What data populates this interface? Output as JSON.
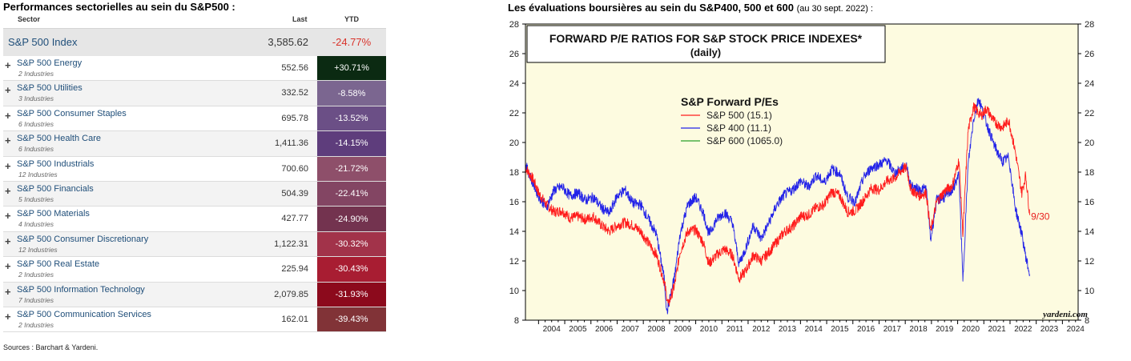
{
  "left": {
    "title": "Performances sectorielles au sein du S&P500 :",
    "headers": {
      "sector": "Sector",
      "last": "Last",
      "ytd": "YTD"
    },
    "index": {
      "name": "S&P 500 Index",
      "last": "3,585.62",
      "ytd": "-24.77%"
    },
    "rows": [
      {
        "name": "S&P 500 Energy",
        "sub": "2 Industries",
        "last": "552.56",
        "ytd": "+30.71%",
        "color": "#0b2a12"
      },
      {
        "name": "S&P 500 Utilities",
        "sub": "3 Industries",
        "last": "332.52",
        "ytd": "-8.58%",
        "color": "#7b6690"
      },
      {
        "name": "S&P 500 Consumer Staples",
        "sub": "6 Industries",
        "last": "695.78",
        "ytd": "-13.52%",
        "color": "#6b4f86"
      },
      {
        "name": "S&P 500 Health Care",
        "sub": "6 Industries",
        "last": "1,411.36",
        "ytd": "-14.15%",
        "color": "#5e3d7c"
      },
      {
        "name": "S&P 500 Industrials",
        "sub": "12 Industries",
        "last": "700.60",
        "ytd": "-21.72%",
        "color": "#8e4f6a"
      },
      {
        "name": "S&P 500 Financials",
        "sub": "5 Industries",
        "last": "504.39",
        "ytd": "-22.41%",
        "color": "#834563"
      },
      {
        "name": "S&P 500 Materials",
        "sub": "4 Industries",
        "last": "427.77",
        "ytd": "-24.90%",
        "color": "#73334f"
      },
      {
        "name": "S&P 500 Consumer Discretionary",
        "sub": "12 Industries",
        "last": "1,122.31",
        "ytd": "-30.32%",
        "color": "#a2334a"
      },
      {
        "name": "S&P 500 Real Estate",
        "sub": "2 Industries",
        "last": "225.94",
        "ytd": "-30.43%",
        "color": "#a81d32"
      },
      {
        "name": "S&P 500 Information Technology",
        "sub": "7 Industries",
        "last": "2,079.85",
        "ytd": "-31.93%",
        "color": "#8c0a1c"
      },
      {
        "name": "S&P 500 Communication Services",
        "sub": "2 Industries",
        "last": "162.01",
        "ytd": "-39.43%",
        "color": "#813337"
      }
    ],
    "sources": "Sources : Barchart & Yardeni."
  },
  "chart_title": {
    "main": "Les évaluations boursières au sein du S&P400, 500 et 600",
    "note": "(au 30 sept. 2022) :"
  },
  "chart_data": {
    "type": "line",
    "title": "FORWARD P/E RATIOS FOR S&P STOCK PRICE INDEXES*",
    "subtitle": "(daily)",
    "legend_title": "S&P Forward P/Es",
    "legend_position": "top-left",
    "ylim": [
      8,
      28
    ],
    "xlim": [
      2003.5,
      2024.6
    ],
    "y_ticks": [
      8,
      10,
      12,
      14,
      16,
      18,
      20,
      22,
      24,
      26,
      28
    ],
    "x_labels": [
      "2004",
      "2005",
      "2006",
      "2007",
      "2008",
      "2009",
      "2010",
      "2011",
      "2012",
      "2013",
      "2014",
      "2015",
      "2016",
      "2017",
      "2018",
      "2019",
      "2020",
      "2021",
      "2022",
      "2023",
      "2024"
    ],
    "background": "#fdfbe0",
    "annotation": {
      "text": "9/30",
      "x": 2022.8,
      "y": 15.0,
      "color": "#e8201e"
    },
    "watermark": "yardeni.com",
    "series": [
      {
        "name": "S&P 500 (15.1)",
        "color": "#ff1c1c",
        "points": [
          [
            2003.5,
            18.3
          ],
          [
            2003.8,
            17.5
          ],
          [
            2004.0,
            16.6
          ],
          [
            2004.3,
            15.8
          ],
          [
            2004.6,
            15.3
          ],
          [
            2004.9,
            15.4
          ],
          [
            2005.2,
            14.9
          ],
          [
            2005.5,
            15.0
          ],
          [
            2005.8,
            14.8
          ],
          [
            2006.1,
            15.0
          ],
          [
            2006.4,
            14.4
          ],
          [
            2006.7,
            14.0
          ],
          [
            2007.0,
            14.4
          ],
          [
            2007.3,
            14.6
          ],
          [
            2007.6,
            14.4
          ],
          [
            2007.9,
            14.0
          ],
          [
            2008.2,
            13.2
          ],
          [
            2008.5,
            12.4
          ],
          [
            2008.8,
            10.6
          ],
          [
            2008.95,
            9.0
          ],
          [
            2009.2,
            10.4
          ],
          [
            2009.4,
            12.6
          ],
          [
            2009.7,
            14.0
          ],
          [
            2010.0,
            14.1
          ],
          [
            2010.3,
            13.2
          ],
          [
            2010.5,
            11.8
          ],
          [
            2010.8,
            12.4
          ],
          [
            2011.1,
            12.8
          ],
          [
            2011.4,
            12.4
          ],
          [
            2011.65,
            10.8
          ],
          [
            2011.9,
            11.3
          ],
          [
            2012.2,
            12.4
          ],
          [
            2012.5,
            12.0
          ],
          [
            2012.8,
            12.6
          ],
          [
            2013.1,
            13.3
          ],
          [
            2013.4,
            14.0
          ],
          [
            2013.7,
            14.3
          ],
          [
            2014.0,
            15.0
          ],
          [
            2014.3,
            15.1
          ],
          [
            2014.6,
            15.6
          ],
          [
            2014.9,
            15.8
          ],
          [
            2015.2,
            16.7
          ],
          [
            2015.5,
            16.4
          ],
          [
            2015.8,
            15.3
          ],
          [
            2016.1,
            15.4
          ],
          [
            2016.4,
            16.1
          ],
          [
            2016.7,
            16.9
          ],
          [
            2017.0,
            16.8
          ],
          [
            2017.3,
            17.4
          ],
          [
            2017.6,
            17.6
          ],
          [
            2017.9,
            18.2
          ],
          [
            2018.05,
            18.3
          ],
          [
            2018.2,
            16.9
          ],
          [
            2018.5,
            16.4
          ],
          [
            2018.8,
            16.6
          ],
          [
            2018.97,
            14.0
          ],
          [
            2019.2,
            16.0
          ],
          [
            2019.5,
            16.7
          ],
          [
            2019.8,
            17.1
          ],
          [
            2020.05,
            18.8
          ],
          [
            2020.2,
            13.8
          ],
          [
            2020.4,
            20.8
          ],
          [
            2020.6,
            22.4
          ],
          [
            2020.9,
            21.8
          ],
          [
            2021.1,
            22.3
          ],
          [
            2021.4,
            21.4
          ],
          [
            2021.7,
            21.0
          ],
          [
            2021.95,
            21.5
          ],
          [
            2022.2,
            19.4
          ],
          [
            2022.45,
            16.6
          ],
          [
            2022.6,
            17.8
          ],
          [
            2022.75,
            15.1
          ]
        ]
      },
      {
        "name": "S&P 400 (11.1)",
        "color": "#2323e8",
        "points": [
          [
            2003.5,
            18.5
          ],
          [
            2003.8,
            17.2
          ],
          [
            2004.0,
            16.4
          ],
          [
            2004.3,
            15.6
          ],
          [
            2004.6,
            16.8
          ],
          [
            2004.9,
            17.0
          ],
          [
            2005.2,
            16.4
          ],
          [
            2005.5,
            16.6
          ],
          [
            2005.8,
            16.1
          ],
          [
            2006.1,
            16.3
          ],
          [
            2006.4,
            15.6
          ],
          [
            2006.7,
            15.2
          ],
          [
            2007.0,
            16.4
          ],
          [
            2007.3,
            16.8
          ],
          [
            2007.6,
            15.9
          ],
          [
            2007.9,
            15.8
          ],
          [
            2008.2,
            14.8
          ],
          [
            2008.5,
            13.8
          ],
          [
            2008.8,
            10.8
          ],
          [
            2008.9,
            8.5
          ],
          [
            2009.2,
            11.0
          ],
          [
            2009.4,
            13.8
          ],
          [
            2009.7,
            15.8
          ],
          [
            2010.0,
            16.3
          ],
          [
            2010.3,
            15.2
          ],
          [
            2010.5,
            13.8
          ],
          [
            2010.8,
            14.8
          ],
          [
            2011.1,
            15.3
          ],
          [
            2011.4,
            14.6
          ],
          [
            2011.65,
            11.8
          ],
          [
            2011.9,
            12.8
          ],
          [
            2012.2,
            14.4
          ],
          [
            2012.5,
            13.5
          ],
          [
            2012.8,
            14.6
          ],
          [
            2013.1,
            15.8
          ],
          [
            2013.4,
            16.5
          ],
          [
            2013.7,
            16.8
          ],
          [
            2014.0,
            17.4
          ],
          [
            2014.3,
            17.0
          ],
          [
            2014.6,
            17.8
          ],
          [
            2014.9,
            17.3
          ],
          [
            2015.2,
            18.2
          ],
          [
            2015.5,
            17.9
          ],
          [
            2015.8,
            16.3
          ],
          [
            2016.1,
            16.0
          ],
          [
            2016.4,
            17.6
          ],
          [
            2016.7,
            18.3
          ],
          [
            2017.0,
            18.5
          ],
          [
            2017.3,
            18.8
          ],
          [
            2017.6,
            17.9
          ],
          [
            2017.9,
            18.3
          ],
          [
            2018.05,
            18.4
          ],
          [
            2018.2,
            17.1
          ],
          [
            2018.5,
            16.8
          ],
          [
            2018.8,
            16.9
          ],
          [
            2018.97,
            13.4
          ],
          [
            2019.2,
            16.1
          ],
          [
            2019.5,
            16.3
          ],
          [
            2019.8,
            16.8
          ],
          [
            2020.05,
            17.8
          ],
          [
            2020.2,
            10.6
          ],
          [
            2020.4,
            18.5
          ],
          [
            2020.6,
            21.5
          ],
          [
            2020.8,
            23.0
          ],
          [
            2021.1,
            21.3
          ],
          [
            2021.4,
            19.8
          ],
          [
            2021.7,
            18.7
          ],
          [
            2021.95,
            19.0
          ],
          [
            2022.2,
            15.6
          ],
          [
            2022.45,
            13.8
          ],
          [
            2022.6,
            12.3
          ],
          [
            2022.75,
            11.1
          ]
        ]
      },
      {
        "name": "S&P 600 (1065.0)",
        "color": "#2aa02a",
        "points": []
      }
    ]
  }
}
